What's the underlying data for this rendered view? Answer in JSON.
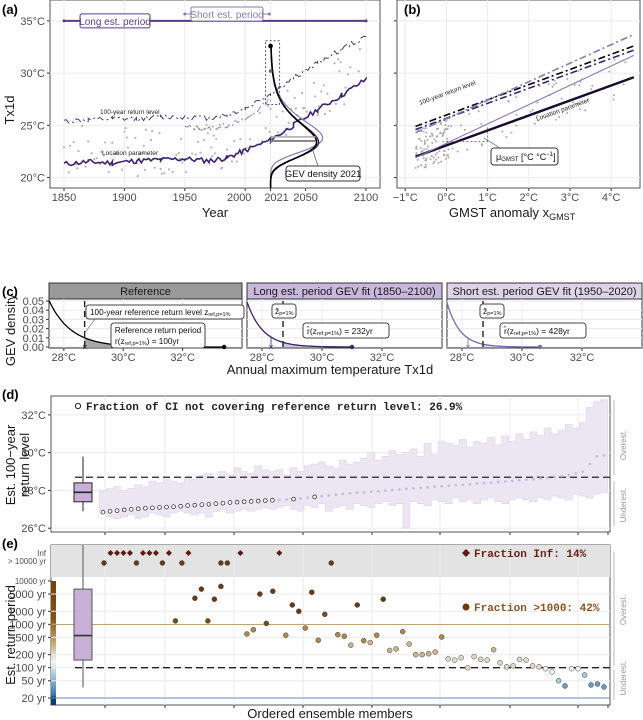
{
  "chart_data": [
    {
      "id": "a",
      "panel_label": "(a)",
      "type": "line",
      "xlabel": "Year",
      "ylabel": "Tx1d",
      "xlim": [
        1850,
        2100
      ],
      "ylim": [
        19,
        37
      ],
      "x_ticks": [
        1850,
        1900,
        1950,
        2000,
        2021,
        2050,
        2100
      ],
      "x_tick_labels": [
        "1850",
        "1900",
        "1950",
        "2000",
        "2021",
        "2050",
        "2100"
      ],
      "y_ticks": [
        20,
        25,
        30,
        35
      ],
      "y_tick_labels": [
        "20°C",
        "25°C",
        "30°C",
        "35°C"
      ],
      "periods": [
        {
          "name": "Long est. period",
          "start": 1850,
          "end": 2100,
          "y": 35,
          "color": "#5a3a8a"
        },
        {
          "name": "Short est. period",
          "start": 1950,
          "end": 2020,
          "y": 36.5,
          "color": "#8a7bb5"
        }
      ],
      "annotations": [
        "100-year return level",
        "Location parameter",
        "GEV density 2021"
      ],
      "series": [
        {
          "name": "Location parameter (long)",
          "style": "solid",
          "color": "#3d2270",
          "x": [
            1850,
            1870,
            1890,
            1910,
            1930,
            1950,
            1970,
            1985,
            2000,
            2021,
            2040,
            2060,
            2080,
            2100
          ],
          "values": [
            21.3,
            21.5,
            21.4,
            21.6,
            21.7,
            21.8,
            21.6,
            21.9,
            22.6,
            23.6,
            25.0,
            26.5,
            27.9,
            29.4
          ]
        },
        {
          "name": "100-year return level (long)",
          "style": "dashdot",
          "color": "#3d2270",
          "x": [
            1850,
            1870,
            1890,
            1910,
            1930,
            1950,
            1970,
            1985,
            2000,
            2021,
            2040,
            2060,
            2080,
            2100
          ],
          "values": [
            25.4,
            25.5,
            25.6,
            25.6,
            25.8,
            25.8,
            25.7,
            26.0,
            26.6,
            28.0,
            29.5,
            31.0,
            32.3,
            33.5
          ]
        },
        {
          "name": "100-year return level (short)",
          "style": "dashdot",
          "color": "#8a7bb5",
          "x": [
            1950,
            1970,
            1985,
            2000,
            2021
          ],
          "values": [
            24.8,
            24.7,
            25.0,
            25.5,
            27.5
          ]
        }
      ],
      "gev_density_2021": {
        "year": 2021,
        "mode": 23.6,
        "peak_year_offset": 45,
        "max_obs": 32.6
      }
    },
    {
      "id": "b",
      "panel_label": "(b)",
      "type": "line",
      "xlabel": "GMST anomaly x",
      "xlabel_sub": "GMST",
      "ylabel": "",
      "xlim": [
        -1.2,
        4.7
      ],
      "ylim": [
        19,
        37
      ],
      "x_ticks": [
        -1,
        0,
        1,
        2,
        3,
        4
      ],
      "x_tick_labels": [
        "−1°C",
        "0°C",
        "1°C",
        "2°C",
        "3°C",
        "4°C"
      ],
      "annotations": [
        "100-year return level",
        "Location parameter"
      ],
      "slope_label": "μ",
      "slope_label_sub": "GMST",
      "slope_label_unit": " [°C °C",
      "slope_label_sup": "−1",
      "slope_label_end": "]",
      "series": [
        {
          "name": "Location parameter (long, bold)",
          "color": "#1a0a30",
          "style": "solid",
          "x": [
            -0.75,
            4.55
          ],
          "values": [
            22.0,
            29.6
          ]
        },
        {
          "name": "Location parameter (short)",
          "color": "#8a7bb5",
          "style": "solid",
          "x": [
            -0.75,
            4.55
          ],
          "values": [
            21.9,
            31.7
          ]
        },
        {
          "name": "Return level (black)",
          "color": "#000000",
          "style": "dashdot",
          "x": [
            -0.75,
            4.55
          ],
          "values": [
            24.9,
            32.6
          ]
        },
        {
          "name": "Return level (dark purple)",
          "color": "#3d2270",
          "style": "dashdot",
          "x": [
            -0.75,
            4.55
          ],
          "values": [
            24.6,
            32.2
          ]
        },
        {
          "name": "Return level (light purple)",
          "color": "#8a7bb5",
          "style": "dashdot",
          "x": [
            -0.75,
            4.55
          ],
          "values": [
            24.3,
            33.7
          ]
        }
      ]
    },
    {
      "id": "c",
      "panel_label": "(c)",
      "type": "area",
      "xlabel": "Annual maximum temperature Tx1d",
      "ylabel": "GEV density",
      "xlim": [
        27.5,
        34.0
      ],
      "ylim": [
        0,
        0.05
      ],
      "y_ticks": [
        0,
        0.01,
        0.02,
        0.03,
        0.04,
        0.05
      ],
      "y_tick_labels": [
        "0.00",
        "0.01",
        "0.02",
        "0.03",
        "0.04",
        "0.05"
      ],
      "x_ticks": [
        28,
        30,
        32
      ],
      "x_tick_labels": [
        "28°C",
        "30°C",
        "32°C"
      ],
      "facets": [
        {
          "title": "Reference",
          "header_color": "#999999",
          "curve_color": "#000000",
          "fill": "#999999",
          "ref_level": 28.7,
          "est_level": 28.7,
          "endpoint": 33.4,
          "boxes": [
            "100-year reference return level z",
            "Reference return period",
            "r(z",
            ") = 100yr"
          ],
          "box_sub": "ref,p=1%"
        },
        {
          "title": "Long est. period GEV fit (1850–2100)",
          "header_color": "#c8b8dc",
          "curve_color": "#3d2270",
          "fill": "#c8b8dc",
          "ref_level": 28.7,
          "est_level": 28.3,
          "endpoint": 31.0,
          "box_z": "ẑ",
          "box_z_sub": "p=1%",
          "box_r": "r̂(z",
          "box_r_sub": "ref,p=1%",
          "box_r_end": ") = 232yr"
        },
        {
          "title": "Short est. period GEV fit (1950–2020)",
          "header_color": "#ddd4ea",
          "curve_color": "#7a6aaa",
          "fill": "#ddd4ea",
          "ref_level": 28.7,
          "est_level": 28.2,
          "endpoint": 30.6,
          "box_z": "ẑ",
          "box_z_sub": "p=1%",
          "box_r": "r̂(z",
          "box_r_sub": "ref,p=1%",
          "box_r_end": ") = 428yr"
        }
      ]
    },
    {
      "id": "d",
      "panel_label": "(d)",
      "type": "scatter",
      "ylabel_line1": "Est. 100−year",
      "ylabel_line2": "return level",
      "ylim": [
        25.8,
        33.0
      ],
      "y_ticks": [
        26,
        28,
        30,
        32
      ],
      "y_tick_labels": [
        "26°C",
        "28°C",
        "30°C",
        "32°C"
      ],
      "reference_level": 28.7,
      "legend_text": "Fraction of CI not covering reference return level: 26.9%",
      "side_labels": [
        "Overest.",
        "Underest."
      ],
      "boxplot": {
        "min": 26.9,
        "q1": 27.4,
        "median": 27.9,
        "q3": 28.4,
        "max": 29.8
      },
      "values": [
        26.85,
        26.9,
        26.93,
        26.97,
        27.0,
        27.03,
        27.06,
        27.08,
        27.1,
        27.12,
        27.14,
        27.16,
        27.2,
        27.22,
        27.25,
        27.27,
        27.3,
        27.33,
        27.36,
        27.38,
        27.4,
        27.42,
        27.44,
        27.46,
        27.48,
        27.5,
        27.52,
        27.54,
        27.57,
        27.62,
        27.66,
        27.7,
        27.74,
        27.78,
        27.82,
        27.85,
        27.88,
        27.9,
        27.93,
        27.96,
        27.99,
        28.02,
        28.05,
        28.08,
        28.11,
        28.14,
        28.17,
        28.2,
        28.22,
        28.25,
        28.28,
        28.3,
        28.33,
        28.36,
        28.39,
        28.42,
        28.45,
        28.48,
        28.51,
        28.54,
        28.57,
        28.6,
        28.64,
        28.68,
        28.72,
        28.76,
        28.82,
        28.9,
        29.0,
        29.4,
        29.8,
        29.85
      ],
      "ci_lower": [
        26.8,
        26.6,
        26.5,
        26.6,
        26.7,
        26.5,
        26.6,
        26.8,
        26.7,
        26.6,
        26.8,
        26.9,
        26.8,
        26.7,
        26.8,
        26.6,
        26.9,
        27.0,
        26.8,
        26.9,
        27.0,
        26.9,
        27.0,
        27.1,
        27.0,
        27.1,
        27.2,
        27.0,
        26.9,
        27.2,
        27.1,
        27.3,
        26.9,
        27.1,
        27.2,
        27.0,
        27.3,
        27.2,
        27.1,
        27.3,
        27.4,
        27.2,
        27.3,
        26.0,
        27.4,
        27.3,
        27.2,
        27.5,
        27.4,
        27.3,
        27.6,
        27.4,
        27.5,
        27.3,
        27.5,
        27.6,
        27.4,
        27.3,
        27.5,
        27.6,
        27.5,
        27.4,
        27.6,
        27.5,
        27.7,
        27.6,
        27.5,
        27.8,
        27.7,
        27.6,
        27.8,
        27.9
      ],
      "ci_upper": [
        28.0,
        28.1,
        28.2,
        28.0,
        28.1,
        28.3,
        28.2,
        28.5,
        28.4,
        28.6,
        28.5,
        28.4,
        28.7,
        28.6,
        28.8,
        28.9,
        28.7,
        29.0,
        28.8,
        29.2,
        29.0,
        28.9,
        29.3,
        29.1,
        29.0,
        29.1,
        28.8,
        29.2,
        29.0,
        29.3,
        29.4,
        29.5,
        29.3,
        29.2,
        29.6,
        29.4,
        29.5,
        29.7,
        30.0,
        29.6,
        29.8,
        30.1,
        29.9,
        30.0,
        30.2,
        29.8,
        30.5,
        29.9,
        30.6,
        30.5,
        30.4,
        30.7,
        30.3,
        30.6,
        30.5,
        30.8,
        30.4,
        30.9,
        30.6,
        31.0,
        30.7,
        31.1,
        30.9,
        31.3,
        31.0,
        31.2,
        31.5,
        31.3,
        31.6,
        32.4,
        32.7,
        32.8
      ],
      "open_markers_count": 25
    },
    {
      "id": "e",
      "panel_label": "(e)",
      "type": "scatter",
      "ylabel": "Est. return period",
      "xlabel": "Ordered ensemble members",
      "y_scale": "log",
      "y_ticks": [
        20,
        50,
        100,
        200,
        500,
        1000,
        2000,
        5000,
        10000
      ],
      "y_tick_labels": [
        "20 yr",
        "50 yr",
        "100 yr",
        "200 yr",
        "500 yr",
        "1000 yr",
        "2000 yr",
        "5000 yr",
        "10000 yr"
      ],
      "extra_tick_labels": [
        "> 10000 yr",
        "Inf"
      ],
      "reference_period": 100,
      "legend_inf": "Fraction Inf:    14%",
      "legend_1000": "Fraction >1000: 42%",
      "side_labels": [
        "Overest.",
        "Underest."
      ],
      "boxplot": {
        "min": 35,
        "q1": 150,
        "median": 550,
        "q3": 6500,
        "max": "Inf"
      },
      "inf_members": [
        2,
        3,
        4,
        5,
        7,
        8,
        9,
        11,
        14,
        22,
        28
      ],
      "gt10000_members": [
        1,
        6,
        10,
        13,
        19,
        20,
        36
      ],
      "finite": [
        [
          12,
          1200
        ],
        [
          15,
          4000
        ],
        [
          16,
          6500
        ],
        [
          17,
          1200
        ],
        [
          18,
          3800
        ],
        [
          19,
          7500
        ],
        [
          23,
          600
        ],
        [
          24,
          750
        ],
        [
          25,
          5000
        ],
        [
          26,
          1050
        ],
        [
          27,
          5800
        ],
        [
          29,
          560
        ],
        [
          30,
          2800
        ],
        [
          31,
          2000
        ],
        [
          32,
          820
        ],
        [
          33,
          5500
        ],
        [
          34,
          430
        ],
        [
          35,
          1700
        ],
        [
          37,
          580
        ],
        [
          38,
          530
        ],
        [
          39,
          330
        ],
        [
          40,
          2800
        ],
        [
          41,
          420
        ],
        [
          42,
          380
        ],
        [
          43,
          560
        ],
        [
          44,
          3800
        ],
        [
          45,
          250
        ],
        [
          46,
          270
        ],
        [
          47,
          680
        ],
        [
          48,
          350
        ],
        [
          49,
          200
        ],
        [
          50,
          200
        ],
        [
          51,
          210
        ],
        [
          52,
          230
        ],
        [
          53,
          510
        ],
        [
          54,
          160
        ],
        [
          55,
          150
        ],
        [
          56,
          170
        ],
        [
          57,
          100
        ],
        [
          58,
          180
        ],
        [
          59,
          155
        ],
        [
          60,
          150
        ],
        [
          61,
          260
        ],
        [
          62,
          130
        ],
        [
          63,
          105
        ],
        [
          64,
          110
        ],
        [
          65,
          155
        ],
        [
          66,
          150
        ],
        [
          67,
          110
        ],
        [
          68,
          105
        ],
        [
          69,
          95
        ],
        [
          70,
          80
        ],
        [
          71,
          50
        ],
        [
          72,
          38
        ],
        [
          73,
          95
        ],
        [
          74,
          95
        ],
        [
          75,
          68
        ],
        [
          76,
          40
        ],
        [
          77,
          42
        ],
        [
          78,
          36
        ]
      ]
    }
  ]
}
